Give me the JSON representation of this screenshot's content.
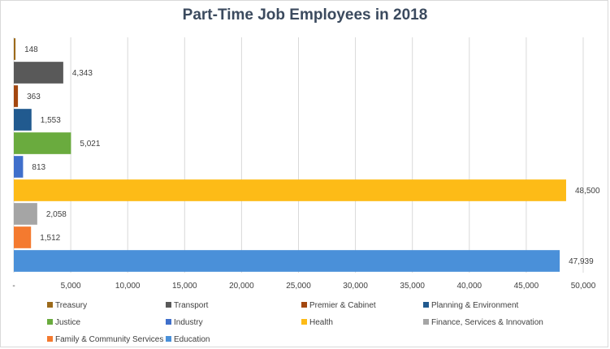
{
  "chart_data": {
    "type": "bar",
    "orientation": "horizontal",
    "title": "Part-Time Job Employees in 2018",
    "xlabel": "",
    "ylabel": "",
    "xlim": [
      0,
      50000
    ],
    "x_ticks": [
      "-",
      "5,000",
      "10,000",
      "15,000",
      "20,000",
      "25,000",
      "30,000",
      "35,000",
      "40,000",
      "45,000",
      "50,000"
    ],
    "grid": "vertical",
    "legend_position": "bottom",
    "series": [
      {
        "name": "Treasury",
        "value": 148,
        "label": "148",
        "color": "#9c6a1b"
      },
      {
        "name": "Transport",
        "value": 4343,
        "label": "4,343",
        "color": "#595959"
      },
      {
        "name": "Premier & Cabinet",
        "value": 363,
        "label": "363",
        "color": "#a3470f"
      },
      {
        "name": "Planning & Environment",
        "value": 1553,
        "label": "1,553",
        "color": "#215a8f"
      },
      {
        "name": "Justice",
        "value": 5021,
        "label": "5,021",
        "color": "#6aab3e"
      },
      {
        "name": "Industry",
        "value": 813,
        "label": "813",
        "color": "#3f6fcb"
      },
      {
        "name": "Health",
        "value": 48500,
        "label": "48,500",
        "color": "#fdbb17"
      },
      {
        "name": "Finance, Services & Innovation",
        "value": 2058,
        "label": "2,058",
        "color": "#a5a5a5"
      },
      {
        "name": "Family & Community Services",
        "value": 1512,
        "label": "1,512",
        "color": "#f47a2f"
      },
      {
        "name": "Education",
        "value": 47939,
        "label": "47,939",
        "color": "#4a90d9"
      }
    ]
  }
}
